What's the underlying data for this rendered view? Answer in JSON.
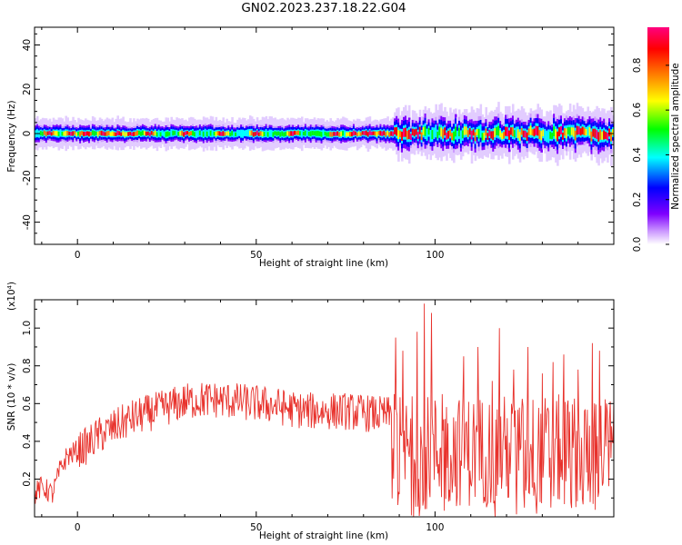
{
  "title": "GN02.2023.237.18.22.G04",
  "chart_data": [
    {
      "type": "heatmap",
      "xlabel": "Height of straight line (km)",
      "ylabel": "Frequency (Hz)",
      "xlim": [
        -12,
        150
      ],
      "ylim": [
        -50,
        48
      ],
      "xticks": [
        0,
        50,
        100
      ],
      "yticks": [
        -40,
        -20,
        0,
        20,
        40
      ],
      "yticklabels": [
        "-40",
        "-20",
        "0",
        "20",
        "40"
      ],
      "colorbar": {
        "label": "Normalized spectral amplitude",
        "range": [
          0.0,
          0.97
        ],
        "ticks": [
          "0.0",
          "0.2",
          "0.4",
          "0.6",
          "0.8"
        ],
        "colormap": [
          "#ffffff",
          "#cc99ff",
          "#7f00ff",
          "#0000ff",
          "#00ffff",
          "#00ff00",
          "#ffff00",
          "#ff7f00",
          "#ff0000",
          "#ff007f"
        ]
      },
      "band_center_hz": 0,
      "band_halfwidth_hz": [
        3,
        8
      ],
      "peak_positions_km": [
        -8,
        -2,
        2,
        7,
        11,
        15,
        20,
        30,
        40,
        50,
        60,
        72,
        77,
        80,
        82,
        85,
        88,
        91,
        93,
        95,
        103,
        110,
        115,
        120,
        125,
        128,
        135,
        140,
        145,
        148
      ]
    },
    {
      "type": "line",
      "xlabel": "Height of straight line (km)",
      "ylabel": "SNR (10 * v/v)",
      "yscale_label": "(x10⁴)",
      "xlim": [
        -12,
        150
      ],
      "ylim": [
        0.0,
        1.15
      ],
      "xticks": [
        0,
        50,
        100
      ],
      "yticks": [
        0.2,
        0.4,
        0.6,
        0.8,
        1.0
      ],
      "yticklabels": [
        "0.2",
        "0.4",
        "0.6",
        "0.8",
        "1.0"
      ],
      "color": "#e8322c",
      "envelope_x": [
        -12,
        -10,
        -7,
        -5,
        -3,
        0,
        3,
        5,
        10,
        15,
        20,
        25,
        30,
        35,
        40,
        45,
        50,
        55,
        60,
        65,
        70,
        75,
        80,
        85,
        88
      ],
      "envelope_y": [
        0.12,
        0.16,
        0.12,
        0.24,
        0.32,
        0.35,
        0.38,
        0.42,
        0.47,
        0.52,
        0.55,
        0.58,
        0.61,
        0.62,
        0.62,
        0.61,
        0.6,
        0.59,
        0.57,
        0.56,
        0.56,
        0.56,
        0.55,
        0.54,
        0.54
      ],
      "spikes_x": [
        89,
        91,
        95,
        97,
        99,
        102,
        108,
        112,
        116,
        118,
        122,
        126,
        130,
        133,
        136,
        140,
        144,
        146,
        148
      ],
      "spikes_y": [
        0.95,
        0.88,
        0.98,
        1.13,
        1.08,
        0.65,
        0.85,
        0.9,
        0.72,
        1.0,
        0.78,
        0.9,
        0.76,
        0.82,
        0.86,
        0.78,
        0.92,
        0.88,
        0.6
      ]
    }
  ]
}
